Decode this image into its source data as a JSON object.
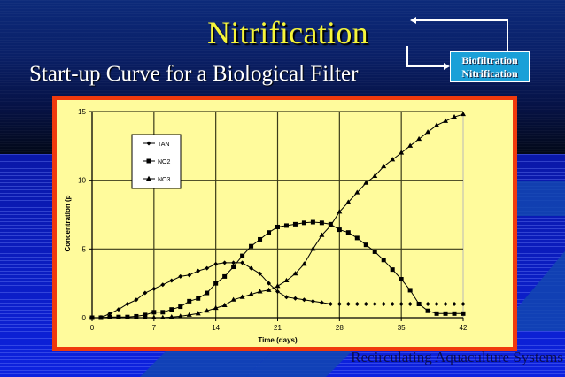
{
  "slide": {
    "title": "Nitrification",
    "subtitle": "Start-up Curve for a Biological Filter",
    "footer": "Recirculating Aquaculture Systems",
    "diagram": {
      "box_line1": "Biofiltration",
      "box_line2": "Nitrification"
    }
  },
  "colors": {
    "title": "#f5f53a",
    "frame": "#f03a0c",
    "plot_bg": "#fffb9c",
    "box": "#1aa0d8",
    "series": "#000000",
    "grid": "#3a3a1a"
  },
  "chart_data": {
    "type": "line",
    "title": "",
    "xlabel": "Time (days)",
    "ylabel": "Concentration (p",
    "xlim": [
      0,
      42
    ],
    "ylim": [
      0,
      15
    ],
    "xticks": [
      0,
      7,
      14,
      21,
      28,
      35,
      42
    ],
    "yticks": [
      0,
      5,
      10,
      15
    ],
    "grid": true,
    "legend_position": "upper-left-inside",
    "x": [
      0,
      1,
      2,
      3,
      4,
      5,
      6,
      7,
      8,
      9,
      10,
      11,
      12,
      13,
      14,
      15,
      16,
      17,
      18,
      19,
      20,
      21,
      22,
      23,
      24,
      25,
      26,
      27,
      28,
      29,
      30,
      31,
      32,
      33,
      34,
      35,
      36,
      37,
      38,
      39,
      40,
      41,
      42
    ],
    "series": [
      {
        "name": "TAN",
        "marker": "diamond",
        "values": [
          0,
          0,
          0.3,
          0.6,
          1.0,
          1.3,
          1.8,
          2.1,
          2.4,
          2.7,
          3.0,
          3.1,
          3.4,
          3.6,
          3.9,
          4.0,
          4.0,
          4.0,
          3.6,
          3.2,
          2.5,
          1.9,
          1.5,
          1.4,
          1.3,
          1.2,
          1.1,
          1.0,
          1.0,
          1.0,
          1.0,
          1.0,
          1.0,
          1.0,
          1.0,
          1.0,
          1.0,
          1.0,
          1.0,
          1.0,
          1.0,
          1.0,
          1.0
        ]
      },
      {
        "name": "NO2",
        "marker": "square",
        "values": [
          0,
          0,
          0.05,
          0.05,
          0.05,
          0.1,
          0.2,
          0.4,
          0.4,
          0.6,
          0.8,
          1.2,
          1.4,
          1.8,
          2.5,
          3.0,
          3.7,
          4.5,
          5.2,
          5.7,
          6.2,
          6.6,
          6.7,
          6.8,
          6.9,
          6.95,
          6.9,
          6.8,
          6.4,
          6.2,
          5.8,
          5.3,
          4.8,
          4.2,
          3.5,
          2.8,
          2.0,
          1.0,
          0.5,
          0.3,
          0.3,
          0.3,
          0.3
        ]
      },
      {
        "name": "NO3",
        "marker": "triangle",
        "values": [
          0,
          0,
          0,
          0,
          0,
          0,
          0,
          0,
          0,
          0.05,
          0.1,
          0.2,
          0.3,
          0.5,
          0.7,
          0.9,
          1.3,
          1.5,
          1.7,
          1.9,
          2.0,
          2.3,
          2.7,
          3.2,
          3.9,
          5.0,
          6.0,
          6.7,
          7.7,
          8.4,
          9.1,
          9.8,
          10.3,
          11.0,
          11.5,
          12.0,
          12.5,
          13.0,
          13.5,
          14.0,
          14.3,
          14.6,
          14.8
        ]
      }
    ]
  }
}
